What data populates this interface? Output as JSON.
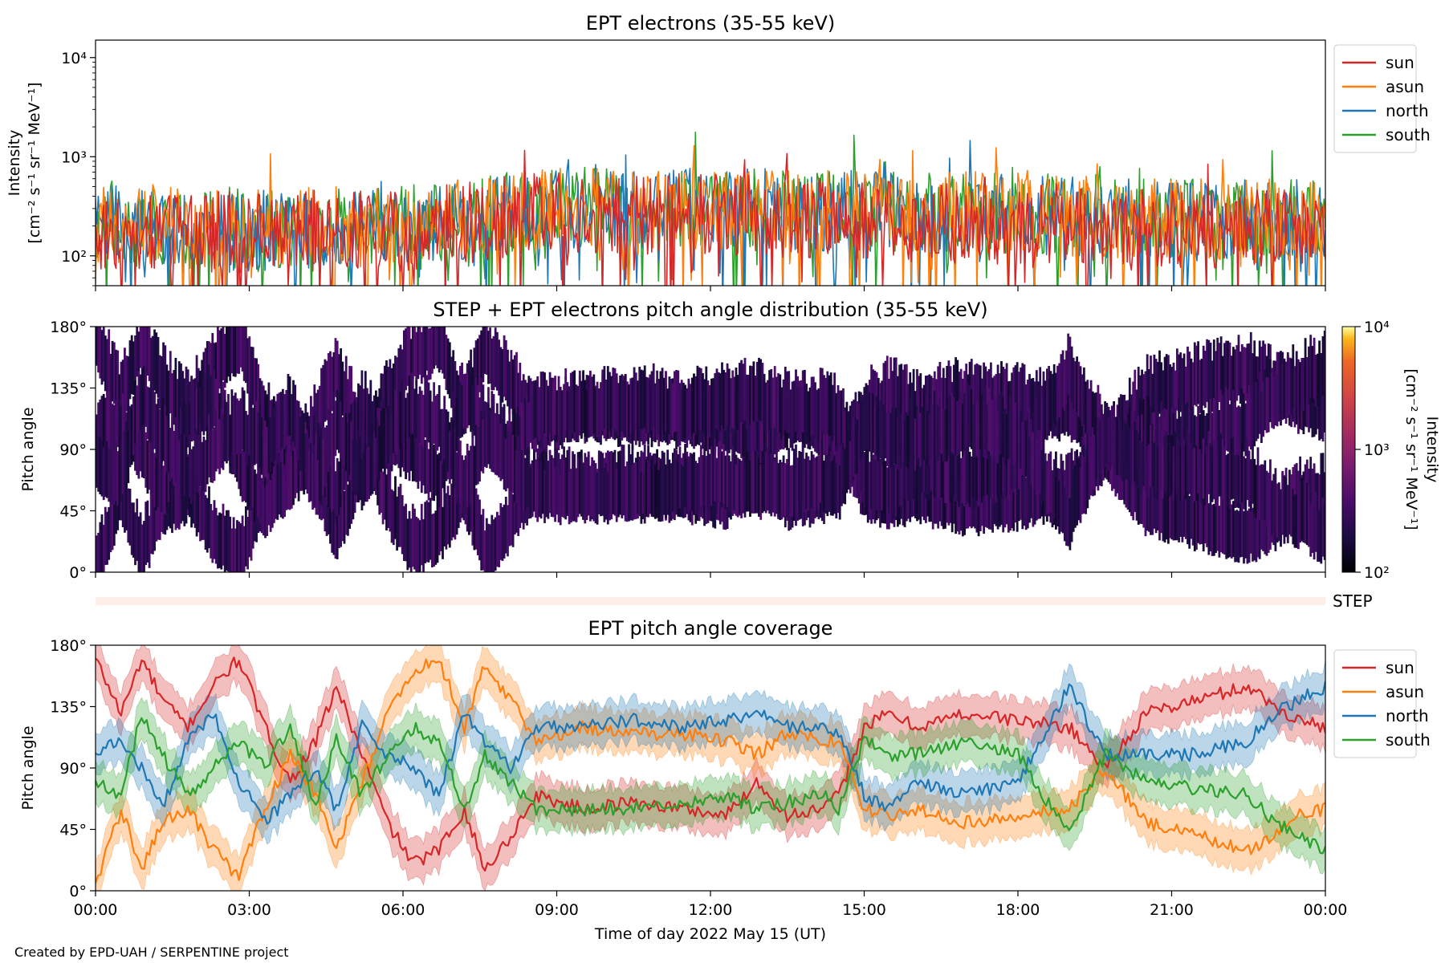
{
  "credit": "Created by EPD-UAH / SERPENTINE project",
  "chart_data": [
    {
      "type": "line",
      "title": "EPT electrons (35-55 keV)",
      "ylabel_lines": [
        "Intensity",
        "[cm⁻² s⁻¹ sr⁻¹ MeV⁻¹]"
      ],
      "yscale": "log",
      "ylim": [
        50,
        15000
      ],
      "yticks": [
        {
          "value": 100,
          "label": "10²"
        },
        {
          "value": 1000,
          "label": "10³"
        },
        {
          "value": 10000,
          "label": "10⁴"
        }
      ],
      "xlim": [
        0,
        24
      ],
      "grid": false,
      "legend": "outside-right",
      "series": [
        {
          "name": "sun",
          "color": "#d62728",
          "baseline": [
            [
              0,
              170
            ],
            [
              3,
              180
            ],
            [
              6,
              180
            ],
            [
              9,
              280
            ],
            [
              12,
              260
            ],
            [
              15,
              230
            ],
            [
              18,
              200
            ],
            [
              21,
              180
            ],
            [
              24,
              200
            ]
          ]
        },
        {
          "name": "asun",
          "color": "#ff7f0e",
          "baseline": [
            [
              0,
              210
            ],
            [
              3,
              190
            ],
            [
              6,
              200
            ],
            [
              9,
              300
            ],
            [
              12,
              290
            ],
            [
              15,
              280
            ],
            [
              18,
              270
            ],
            [
              21,
              230
            ],
            [
              24,
              250
            ]
          ]
        },
        {
          "name": "north",
          "color": "#1f77b4",
          "baseline": [
            [
              0,
              200
            ],
            [
              3,
              180
            ],
            [
              6,
              190
            ],
            [
              9,
              310
            ],
            [
              12,
              300
            ],
            [
              15,
              280
            ],
            [
              18,
              260
            ],
            [
              21,
              220
            ],
            [
              24,
              240
            ]
          ]
        },
        {
          "name": "south",
          "color": "#2ca02c",
          "baseline": [
            [
              0,
              200
            ],
            [
              3,
              190
            ],
            [
              6,
              200
            ],
            [
              9,
              320
            ],
            [
              12,
              300
            ],
            [
              15,
              290
            ],
            [
              18,
              270
            ],
            [
              21,
              230
            ],
            [
              24,
              240
            ]
          ]
        }
      ]
    },
    {
      "type": "heatmap",
      "title": "STEP + EPT electrons pitch angle distribution (35-55 keV)",
      "ylabel": "Pitch angle",
      "ylim": [
        0,
        180
      ],
      "yticks": [
        {
          "value": 0,
          "label": "0°"
        },
        {
          "value": 45,
          "label": "45°"
        },
        {
          "value": 90,
          "label": "90°"
        },
        {
          "value": 135,
          "label": "135°"
        },
        {
          "value": 180,
          "label": "180°"
        }
      ],
      "xlim": [
        0,
        24
      ],
      "colorbar": {
        "label_lines": [
          "Intensity",
          "[cm⁻² s⁻¹ sr⁻¹ MeV⁻¹]"
        ],
        "scale": "log",
        "range": [
          100,
          10000
        ],
        "ticks": [
          {
            "value": 100,
            "label": "10²"
          },
          {
            "value": 1000,
            "label": "10³"
          },
          {
            "value": 10000,
            "label": "10⁴"
          }
        ],
        "colormap": "inferno"
      },
      "dominant_intensity_range": [
        150,
        450
      ]
    },
    {
      "type": "bar",
      "label": "STEP",
      "color": "#fdeee8",
      "xlim": [
        0,
        24
      ]
    },
    {
      "type": "line",
      "title": "EPT pitch angle coverage",
      "ylabel": "Pitch angle",
      "xlabel": "Time of day 2022 May 15 (UT)",
      "ylim": [
        0,
        180
      ],
      "yticks": [
        {
          "value": 0,
          "label": "0°"
        },
        {
          "value": 45,
          "label": "45°"
        },
        {
          "value": 90,
          "label": "90°"
        },
        {
          "value": 135,
          "label": "135°"
        },
        {
          "value": 180,
          "label": "180°"
        }
      ],
      "xlim": [
        0,
        24
      ],
      "xticks": [
        {
          "value": 0,
          "label": "00:00"
        },
        {
          "value": 3,
          "label": "03:00"
        },
        {
          "value": 6,
          "label": "06:00"
        },
        {
          "value": 9,
          "label": "09:00"
        },
        {
          "value": 12,
          "label": "12:00"
        },
        {
          "value": 15,
          "label": "15:00"
        },
        {
          "value": 18,
          "label": "18:00"
        },
        {
          "value": 21,
          "label": "21:00"
        },
        {
          "value": 24,
          "label": "00:00"
        }
      ],
      "grid": false,
      "legend": "outside-right",
      "band_halfwidth": 15,
      "series": [
        {
          "name": "sun",
          "color": "#d62728",
          "x": [
            0,
            0.5,
            0.9,
            1.3,
            1.8,
            2.3,
            2.8,
            3.3,
            3.8,
            4.3,
            4.7,
            5.2,
            5.7,
            6.2,
            6.7,
            7.2,
            7.6,
            8.1,
            8.6,
            9.5,
            10.5,
            11.5,
            12.3,
            12.9,
            13.5,
            14.2,
            14.5,
            15,
            15.5,
            16,
            17,
            18,
            19,
            19.7,
            20.5,
            21.5,
            22.5,
            23,
            23.5,
            24
          ],
          "y": [
            170,
            130,
            170,
            140,
            120,
            150,
            170,
            120,
            80,
            110,
            150,
            100,
            50,
            20,
            30,
            60,
            15,
            40,
            70,
            60,
            65,
            60,
            55,
            80,
            55,
            60,
            70,
            120,
            130,
            120,
            130,
            125,
            120,
            90,
            130,
            140,
            150,
            135,
            125,
            120
          ]
        },
        {
          "name": "asun",
          "color": "#ff7f0e",
          "x": [
            0,
            0.5,
            0.9,
            1.3,
            1.8,
            2.3,
            2.8,
            3.3,
            3.8,
            4.3,
            4.7,
            5.2,
            5.7,
            6.2,
            6.7,
            7.2,
            7.6,
            8.1,
            8.6,
            9.5,
            10.5,
            11.5,
            12.3,
            12.9,
            13.5,
            14.2,
            14.5,
            15,
            15.5,
            16,
            17,
            18,
            19,
            19.7,
            20.5,
            21.5,
            22.5,
            23,
            23.5,
            24
          ],
          "y": [
            5,
            60,
            15,
            50,
            60,
            30,
            10,
            60,
            100,
            70,
            30,
            80,
            130,
            160,
            170,
            120,
            165,
            140,
            110,
            120,
            115,
            115,
            110,
            100,
            115,
            110,
            110,
            60,
            55,
            60,
            50,
            55,
            60,
            90,
            50,
            40,
            30,
            40,
            55,
            60
          ]
        },
        {
          "name": "north",
          "color": "#1f77b4",
          "x": [
            0,
            0.5,
            0.9,
            1.3,
            1.8,
            2.3,
            2.8,
            3.3,
            3.8,
            4.3,
            4.7,
            5.2,
            5.7,
            6.2,
            6.7,
            7.2,
            7.6,
            8.1,
            8.6,
            9.5,
            10.5,
            11.5,
            12.3,
            12.9,
            13.5,
            14.2,
            14.5,
            15,
            15.5,
            16,
            17,
            18,
            19,
            19.7,
            20.5,
            21.5,
            22.5,
            23,
            23.5,
            24
          ],
          "y": [
            100,
            110,
            90,
            60,
            110,
            130,
            80,
            50,
            70,
            90,
            60,
            120,
            100,
            90,
            70,
            130,
            110,
            90,
            120,
            120,
            125,
            120,
            125,
            130,
            120,
            120,
            115,
            70,
            60,
            80,
            70,
            80,
            150,
            100,
            100,
            100,
            110,
            130,
            140,
            150
          ]
        },
        {
          "name": "south",
          "color": "#2ca02c",
          "x": [
            0,
            0.5,
            0.9,
            1.3,
            1.8,
            2.3,
            2.8,
            3.3,
            3.8,
            4.3,
            4.7,
            5.2,
            5.7,
            6.2,
            6.7,
            7.2,
            7.6,
            8.1,
            8.6,
            9.5,
            10.5,
            11.5,
            12.3,
            12.9,
            13.5,
            14.2,
            14.5,
            15,
            15.5,
            16,
            17,
            18,
            19,
            19.7,
            20.5,
            21.5,
            22.5,
            23,
            23.5,
            24
          ],
          "y": [
            80,
            70,
            130,
            100,
            70,
            90,
            110,
            90,
            120,
            60,
            110,
            70,
            100,
            120,
            110,
            60,
            100,
            80,
            60,
            60,
            60,
            65,
            70,
            60,
            65,
            70,
            60,
            110,
            100,
            100,
            110,
            100,
            40,
            100,
            80,
            75,
            70,
            50,
            40,
            30
          ]
        }
      ]
    }
  ]
}
